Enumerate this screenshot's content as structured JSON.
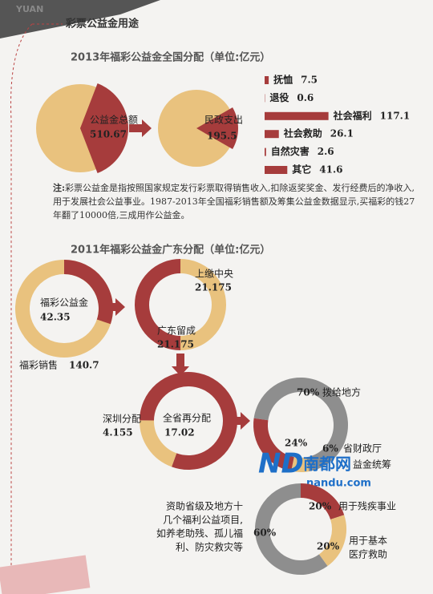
{
  "header": {
    "decor": "YUAN",
    "title": "彩票公益金用途"
  },
  "section1": {
    "title": "2013年福彩公益金全国分配（单位:亿元）",
    "total": {
      "label": "公益金总额",
      "value": 510.67
    },
    "civil": {
      "label": "民政支出",
      "value": 195.5
    },
    "bars": {
      "categories": [
        "抚恤",
        "退役",
        "社会福利",
        "社会救助",
        "自然灾害",
        "其它"
      ],
      "values": [
        7.5,
        0.6,
        117.1,
        26.1,
        2.6,
        41.6
      ]
    },
    "note": {
      "prefix": "注:",
      "text": "彩票公益金是指按照国家规定发行彩票取得销售收入,扣除返奖奖金、发行经费后的净收入,用于发展社会公益事业。1987-2013年全国福彩销售额及筹集公益金数据显示,买福彩的钱27年翻了10000倍,三成用作公益金。"
    }
  },
  "section2": {
    "title": "2011年福彩公益金广东分配（单位:亿元）",
    "sales": {
      "label": "福彩销售",
      "value": 140.7
    },
    "fund": {
      "label": "福彩公益金",
      "value": 42.35
    },
    "central": {
      "label": "上缴中央",
      "value": 21.175
    },
    "retained": {
      "label": "广东留成",
      "value": 21.175
    },
    "shenzhen": {
      "label": "深圳分配",
      "value": 4.155
    },
    "province": {
      "label": "全省再分配",
      "value": 17.02
    },
    "province_split": [
      {
        "value": 70,
        "label": "70%",
        "text": "拨给地方"
      },
      {
        "value": 24,
        "label": "24%"
      },
      {
        "value": 6,
        "label": "6%",
        "text": "省财政厅"
      }
    ],
    "fund_note": "益金统筹",
    "fund_use": [
      {
        "value": 20,
        "label": "20%",
        "text": [
          "用于残疾事业"
        ]
      },
      {
        "value": 20,
        "label": "20%",
        "text": [
          "用于基本",
          "医疗救助"
        ]
      },
      {
        "value": 60,
        "label": "60%",
        "text": [
          "资助省级及地方十",
          "几个福利公益项目,",
          "如养老助残、孤儿福",
          "利、防灾救灾等"
        ]
      }
    ]
  },
  "watermark": {
    "logo": "ND",
    "name": "南都网",
    "url": "nandu.com"
  }
}
